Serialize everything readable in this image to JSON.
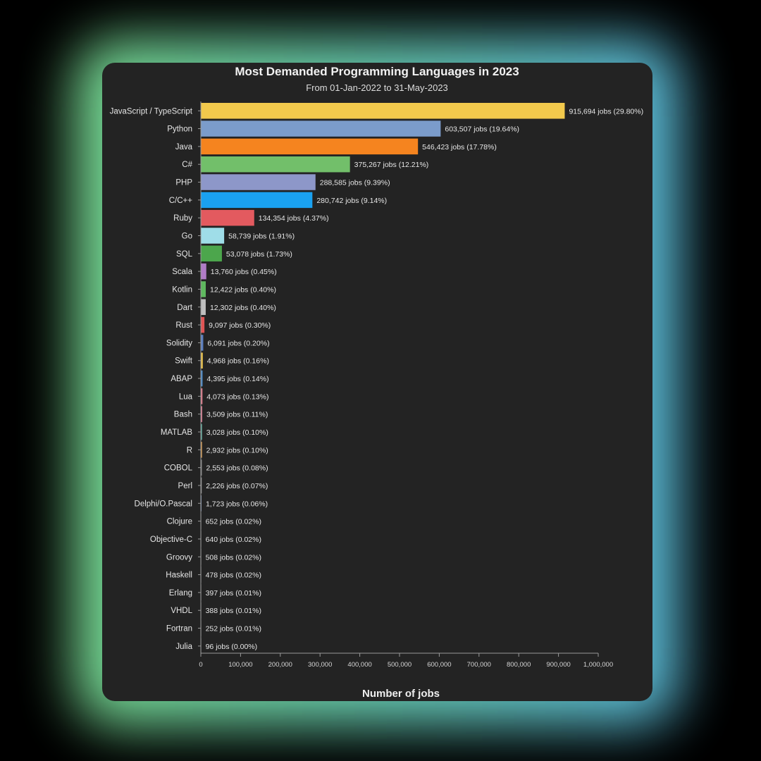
{
  "chart_data": {
    "type": "bar",
    "orientation": "horizontal",
    "title": "Most Demanded Programming Languages in 2023",
    "subtitle": "From 01-Jan-2022 to 31-May-2023",
    "xlabel": "Number of jobs",
    "ylabel": "",
    "xlim": [
      0,
      1000000
    ],
    "x_ticks": [
      0,
      100000,
      200000,
      300000,
      400000,
      500000,
      600000,
      700000,
      800000,
      900000,
      1000000
    ],
    "x_tick_labels": [
      "0",
      "100,000",
      "200,000",
      "300,000",
      "400,000",
      "500,000",
      "600,000",
      "700,000",
      "800,000",
      "900,000",
      "1,000,000"
    ],
    "grid": false,
    "categories": [
      "JavaScript / TypeScript",
      "Python",
      "Java",
      "C#",
      "PHP",
      "C/C++",
      "Ruby",
      "Go",
      "SQL",
      "Scala",
      "Kotlin",
      "Dart",
      "Rust",
      "Solidity",
      "Swift",
      "ABAP",
      "Lua",
      "Bash",
      "MATLAB",
      "R",
      "COBOL",
      "Perl",
      "Delphi/O.Pascal",
      "Clojure",
      "Objective-C",
      "Groovy",
      "Haskell",
      "Erlang",
      "VHDL",
      "Fortran",
      "Julia"
    ],
    "values": [
      915694,
      603507,
      546423,
      375267,
      288585,
      280742,
      134354,
      58739,
      53078,
      13760,
      12422,
      12302,
      9097,
      6091,
      4968,
      4395,
      4073,
      3509,
      3028,
      2932,
      2553,
      2226,
      1723,
      652,
      640,
      508,
      478,
      397,
      388,
      252,
      96
    ],
    "data_labels": [
      "915,694 jobs (29.80%)",
      "603,507 jobs (19.64%)",
      "546,423 jobs (17.78%)",
      "375,267 jobs (12.21%)",
      "288,585 jobs (9.39%)",
      "280,742 jobs (9.14%)",
      "134,354 jobs (4.37%)",
      "58,739 jobs (1.91%)",
      "53,078 jobs (1.73%)",
      "13,760 jobs (0.45%)",
      "12,422 jobs (0.40%)",
      "12,302 jobs (0.40%)",
      "9,097 jobs (0.30%)",
      "6,091 jobs (0.20%)",
      "4,968 jobs (0.16%)",
      "4,395 jobs (0.14%)",
      "4,073 jobs (0.13%)",
      "3,509 jobs (0.11%)",
      "3,028 jobs (0.10%)",
      "2,932 jobs (0.10%)",
      "2,553 jobs (0.08%)",
      "2,226 jobs (0.07%)",
      "1,723 jobs (0.06%)",
      "652 jobs (0.02%)",
      "640 jobs (0.02%)",
      "508 jobs (0.02%)",
      "478 jobs (0.02%)",
      "397 jobs (0.01%)",
      "388 jobs (0.01%)",
      "252 jobs (0.01%)",
      "96 jobs (0.00%)"
    ],
    "colors": [
      "#f2c94c",
      "#7b9ccb",
      "#f5841f",
      "#72bf6a",
      "#8d97c9",
      "#1aa1f0",
      "#e35a5f",
      "#9fdde8",
      "#4ca64c",
      "#b07cc6",
      "#5fb85f",
      "#bfbfbf",
      "#e05555",
      "#5b7fc0",
      "#e8c04a",
      "#4d8bc8",
      "#e07a8a",
      "#d47a8f",
      "#5fb0a0",
      "#e0a050",
      "#8a8a8a",
      "#9a9a9a",
      "#7a8fb0",
      "#8a8a8a",
      "#8a8a8a",
      "#8a8a8a",
      "#8a8a8a",
      "#8a8a8a",
      "#8a8a8a",
      "#8a8a8a",
      "#8a8a8a"
    ]
  }
}
